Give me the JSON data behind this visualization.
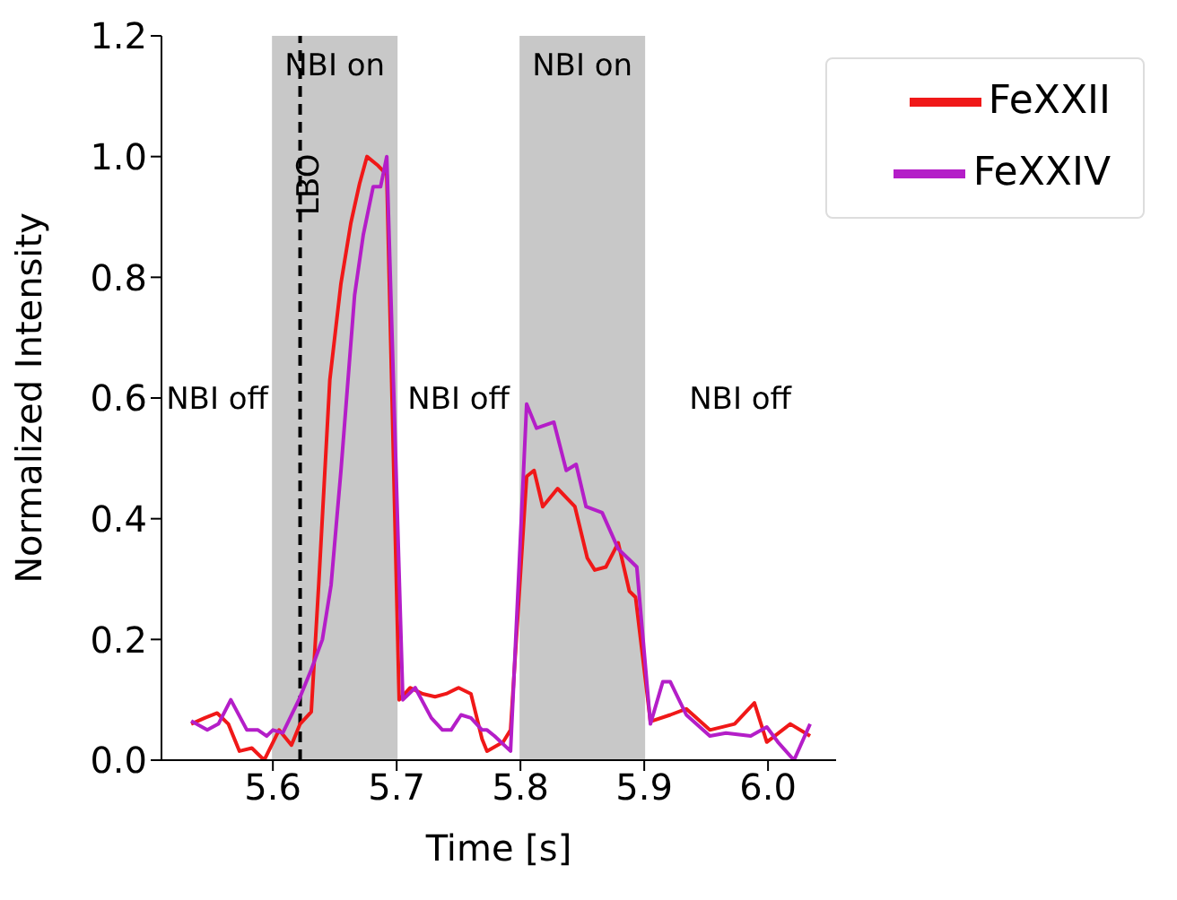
{
  "chart_data": {
    "type": "line",
    "xlabel": "Time [s]",
    "ylabel": "Normalized Intensity",
    "xlim": [
      5.51,
      6.055
    ],
    "ylim": [
      0,
      1.2
    ],
    "xticks": [
      5.6,
      5.7,
      5.8,
      5.9,
      {
        "value": 6,
        "label": "6.0"
      }
    ],
    "yticks": [
      {
        "value": 0,
        "label": "0.0"
      },
      0.2,
      0.4,
      0.6,
      0.8,
      {
        "value": 1,
        "label": "1.0"
      },
      1.2
    ],
    "grid": false,
    "legend": "top right",
    "marker": "none",
    "line_style": "solid",
    "bands": [
      {
        "axis": "x",
        "from": 5.6,
        "to": 5.7,
        "label": "NBI on",
        "color": "#c8c8c8"
      },
      {
        "axis": "x",
        "from": 5.8,
        "to": 5.9,
        "label": "NBI on",
        "color": "#c8c8c8"
      }
    ],
    "ref_lines": [
      {
        "axis": "x",
        "value": 5.622,
        "label": "LBO",
        "color": "#000000",
        "line_style": "dashed"
      }
    ],
    "annotations": [
      "NBI off",
      "NBI off",
      "NBI off"
    ],
    "series": [
      {
        "name": "FeXXII",
        "color": "#f01818",
        "x": [
          5.534,
          5.545,
          5.555,
          5.564,
          5.573,
          5.583,
          5.593,
          5.605,
          5.615,
          5.622,
          5.631,
          5.637,
          5.646,
          5.655,
          5.663,
          5.67,
          5.676,
          5.685,
          5.692,
          5.702,
          5.711,
          5.721,
          5.731,
          5.74,
          5.75,
          5.76,
          5.769,
          5.773,
          5.786,
          5.792,
          5.805,
          5.811,
          5.818,
          5.83,
          5.844,
          5.854,
          5.86,
          5.869,
          5.879,
          5.888,
          5.893,
          5.905,
          5.921,
          5.934,
          5.953,
          5.973,
          5.989,
          5.999,
          6.018,
          6.034
        ],
        "values": [
          0.06,
          0.07,
          0.078,
          0.06,
          0.015,
          0.02,
          0.0,
          0.05,
          0.025,
          0.06,
          0.08,
          0.29,
          0.63,
          0.79,
          0.89,
          0.955,
          1.0,
          0.985,
          0.97,
          0.1,
          0.12,
          0.11,
          0.105,
          0.11,
          0.12,
          0.11,
          0.035,
          0.015,
          0.03,
          0.05,
          0.47,
          0.48,
          0.42,
          0.45,
          0.42,
          0.335,
          0.315,
          0.32,
          0.36,
          0.28,
          0.27,
          0.064,
          0.075,
          0.085,
          0.05,
          0.06,
          0.095,
          0.03,
          0.06,
          0.04
        ]
      },
      {
        "name": "FeXXIV",
        "color": "#b41ec8",
        "x": [
          5.534,
          5.547,
          5.556,
          5.566,
          5.579,
          5.588,
          5.595,
          5.6,
          5.608,
          5.621,
          5.631,
          5.64,
          5.647,
          5.655,
          5.666,
          5.673,
          5.681,
          5.687,
          5.692,
          5.705,
          5.715,
          5.728,
          5.737,
          5.744,
          5.752,
          5.76,
          5.769,
          5.773,
          5.779,
          5.792,
          5.805,
          5.813,
          5.827,
          5.837,
          5.845,
          5.853,
          5.866,
          5.879,
          5.889,
          5.894,
          5.905,
          5.915,
          5.921,
          5.934,
          5.953,
          5.966,
          5.986,
          5.999,
          6.008,
          6.021,
          6.034
        ],
        "values": [
          0.065,
          0.05,
          0.06,
          0.1,
          0.05,
          0.05,
          0.04,
          0.05,
          0.045,
          0.1,
          0.15,
          0.2,
          0.29,
          0.48,
          0.77,
          0.87,
          0.95,
          0.95,
          1.0,
          0.1,
          0.12,
          0.07,
          0.05,
          0.05,
          0.075,
          0.07,
          0.05,
          0.05,
          0.04,
          0.015,
          0.59,
          0.55,
          0.56,
          0.48,
          0.49,
          0.42,
          0.41,
          0.35,
          0.33,
          0.32,
          0.06,
          0.13,
          0.13,
          0.075,
          0.04,
          0.045,
          0.04,
          0.055,
          0.03,
          0.0,
          0.06
        ]
      }
    ]
  }
}
